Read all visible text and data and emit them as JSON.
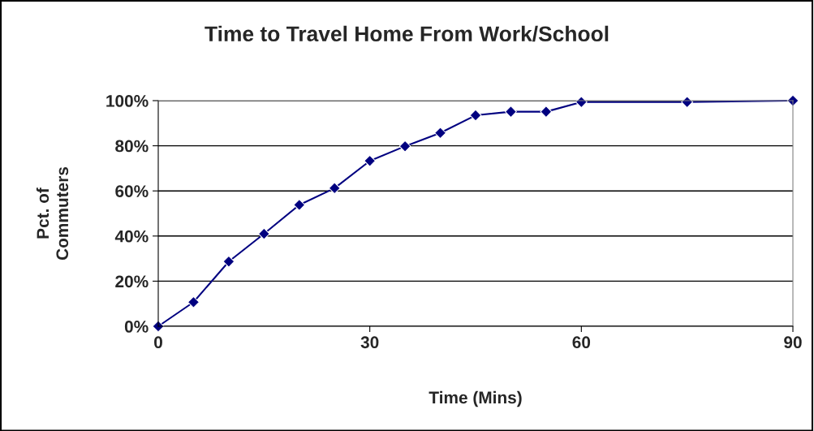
{
  "chart_data": {
    "type": "line",
    "title": "Time to Travel Home From Work/School",
    "xlabel": "Time (Mins)",
    "ylabel": "Pct. of\nCommuters",
    "x": [
      0,
      5,
      10,
      15,
      20,
      25,
      30,
      35,
      40,
      45,
      50,
      55,
      60,
      75,
      90
    ],
    "series": [
      {
        "color": "#000080",
        "values": [
          0,
          10.7,
          28.7,
          41,
          53.8,
          61.2,
          73.3,
          79.8,
          85.7,
          93.5,
          95.1,
          95.1,
          99.4,
          99.4,
          100
        ]
      }
    ],
    "xlim": [
      0,
      90
    ],
    "xticks": [
      0,
      30,
      60,
      90
    ],
    "ylim": [
      0,
      100
    ],
    "yticks": [
      {
        "value": 0,
        "label": "0%"
      },
      {
        "value": 20,
        "label": "20%"
      },
      {
        "value": 40,
        "label": "40%"
      },
      {
        "value": 60,
        "label": "60%"
      },
      {
        "value": 80,
        "label": "80%"
      },
      {
        "value": 100,
        "label": "100%"
      }
    ],
    "grid": "y",
    "marker": "diamond",
    "line_style": "solid",
    "legend": false
  }
}
